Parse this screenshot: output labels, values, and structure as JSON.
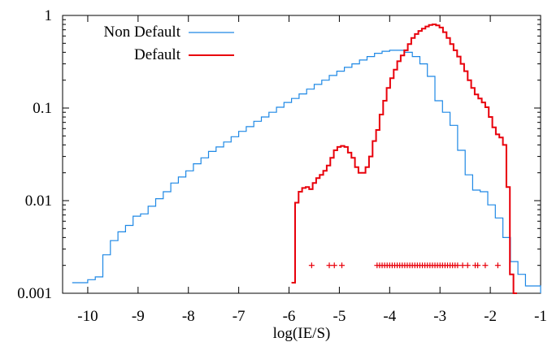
{
  "chart_data": {
    "type": "line",
    "title": "",
    "xlabel": "log(IE/S)",
    "ylabel": "",
    "xlim": [
      -10.5,
      -1
    ],
    "ylim": [
      0.001,
      1
    ],
    "yscale": "log",
    "grid": false,
    "legend_position": "top-left",
    "x_ticks": [
      -10,
      -9,
      -8,
      -7,
      -6,
      -5,
      -4,
      -3,
      -2,
      -1
    ],
    "x_tick_labels": [
      "-10",
      "-9",
      "-8",
      "-7",
      "-6",
      "-5",
      "-4",
      "-3",
      "-2",
      "-1"
    ],
    "y_ticks": [
      0.001,
      0.01,
      0.1,
      1
    ],
    "y_tick_labels": [
      "0.001",
      "0.01",
      "0.1",
      "1"
    ],
    "series": [
      {
        "name": "Non Default",
        "color": "#1e88e5",
        "style": "step",
        "points": [
          [
            -10.31,
            0.0013
          ],
          [
            -10.15,
            0.0013
          ],
          [
            -10.0,
            0.0014
          ],
          [
            -9.85,
            0.0015
          ],
          [
            -9.7,
            0.0026
          ],
          [
            -9.55,
            0.0037
          ],
          [
            -9.4,
            0.0046
          ],
          [
            -9.25,
            0.0054
          ],
          [
            -9.1,
            0.0068
          ],
          [
            -8.95,
            0.0072
          ],
          [
            -8.8,
            0.0087
          ],
          [
            -8.65,
            0.0105
          ],
          [
            -8.5,
            0.0125
          ],
          [
            -8.35,
            0.0155
          ],
          [
            -8.2,
            0.018
          ],
          [
            -8.05,
            0.021
          ],
          [
            -7.9,
            0.025
          ],
          [
            -7.75,
            0.029
          ],
          [
            -7.6,
            0.034
          ],
          [
            -7.45,
            0.038
          ],
          [
            -7.3,
            0.043
          ],
          [
            -7.15,
            0.049
          ],
          [
            -7.0,
            0.056
          ],
          [
            -6.85,
            0.063
          ],
          [
            -6.7,
            0.072
          ],
          [
            -6.55,
            0.08
          ],
          [
            -6.4,
            0.09
          ],
          [
            -6.25,
            0.102
          ],
          [
            -6.1,
            0.115
          ],
          [
            -5.95,
            0.127
          ],
          [
            -5.8,
            0.142
          ],
          [
            -5.65,
            0.16
          ],
          [
            -5.5,
            0.18
          ],
          [
            -5.35,
            0.2
          ],
          [
            -5.2,
            0.225
          ],
          [
            -5.05,
            0.25
          ],
          [
            -4.9,
            0.275
          ],
          [
            -4.75,
            0.3
          ],
          [
            -4.6,
            0.33
          ],
          [
            -4.45,
            0.36
          ],
          [
            -4.3,
            0.39
          ],
          [
            -4.15,
            0.41
          ],
          [
            -4.0,
            0.42
          ],
          [
            -3.85,
            0.42
          ],
          [
            -3.7,
            0.4
          ],
          [
            -3.55,
            0.36
          ],
          [
            -3.4,
            0.3
          ],
          [
            -3.25,
            0.22
          ],
          [
            -3.1,
            0.12
          ],
          [
            -2.95,
            0.09
          ],
          [
            -2.8,
            0.065
          ],
          [
            -2.65,
            0.035
          ],
          [
            -2.5,
            0.019
          ],
          [
            -2.35,
            0.013
          ],
          [
            -2.2,
            0.0125
          ],
          [
            -2.05,
            0.009
          ],
          [
            -1.9,
            0.0065
          ],
          [
            -1.75,
            0.004
          ],
          [
            -1.6,
            0.0022
          ],
          [
            -1.45,
            0.0016
          ],
          [
            -1.3,
            0.0012
          ],
          [
            -1.15,
            0.0012
          ]
        ]
      },
      {
        "name": "Default",
        "color": "#e8000b",
        "style": "step",
        "points": [
          [
            -5.95,
            0.0013
          ],
          [
            -5.88,
            0.0095
          ],
          [
            -5.81,
            0.0125
          ],
          [
            -5.74,
            0.0137
          ],
          [
            -5.67,
            0.014
          ],
          [
            -5.6,
            0.0133
          ],
          [
            -5.53,
            0.0155
          ],
          [
            -5.46,
            0.0175
          ],
          [
            -5.39,
            0.019
          ],
          [
            -5.32,
            0.021
          ],
          [
            -5.25,
            0.024
          ],
          [
            -5.18,
            0.029
          ],
          [
            -5.11,
            0.035
          ],
          [
            -5.04,
            0.038
          ],
          [
            -4.97,
            0.039
          ],
          [
            -4.9,
            0.038
          ],
          [
            -4.83,
            0.033
          ],
          [
            -4.76,
            0.029
          ],
          [
            -4.69,
            0.023
          ],
          [
            -4.62,
            0.02
          ],
          [
            -4.55,
            0.02
          ],
          [
            -4.48,
            0.023
          ],
          [
            -4.41,
            0.03
          ],
          [
            -4.34,
            0.044
          ],
          [
            -4.27,
            0.058
          ],
          [
            -4.2,
            0.085
          ],
          [
            -4.13,
            0.12
          ],
          [
            -4.06,
            0.165
          ],
          [
            -3.99,
            0.21
          ],
          [
            -3.92,
            0.26
          ],
          [
            -3.85,
            0.32
          ],
          [
            -3.78,
            0.37
          ],
          [
            -3.71,
            0.42
          ],
          [
            -3.64,
            0.49
          ],
          [
            -3.57,
            0.57
          ],
          [
            -3.5,
            0.63
          ],
          [
            -3.43,
            0.68
          ],
          [
            -3.36,
            0.72
          ],
          [
            -3.29,
            0.76
          ],
          [
            -3.22,
            0.79
          ],
          [
            -3.15,
            0.8
          ],
          [
            -3.08,
            0.78
          ],
          [
            -3.01,
            0.74
          ],
          [
            -2.94,
            0.66
          ],
          [
            -2.87,
            0.57
          ],
          [
            -2.8,
            0.49
          ],
          [
            -2.73,
            0.42
          ],
          [
            -2.66,
            0.36
          ],
          [
            -2.59,
            0.3
          ],
          [
            -2.52,
            0.25
          ],
          [
            -2.45,
            0.2
          ],
          [
            -2.38,
            0.165
          ],
          [
            -2.31,
            0.14
          ],
          [
            -2.24,
            0.127
          ],
          [
            -2.17,
            0.115
          ],
          [
            -2.1,
            0.102
          ],
          [
            -2.03,
            0.08
          ],
          [
            -1.96,
            0.062
          ],
          [
            -1.89,
            0.052
          ],
          [
            -1.82,
            0.048
          ],
          [
            -1.75,
            0.04
          ],
          [
            -1.68,
            0.014
          ],
          [
            -1.61,
            0.0016
          ],
          [
            -1.54,
            0.001
          ]
        ]
      },
      {
        "name": "",
        "color": "#e8000b",
        "style": "markers",
        "marker": "+",
        "y": 0.002,
        "x": [
          -5.55,
          -5.2,
          -5.1,
          -4.95,
          -4.25,
          -4.2,
          -4.15,
          -4.1,
          -4.05,
          -4.0,
          -3.95,
          -3.9,
          -3.85,
          -3.8,
          -3.75,
          -3.7,
          -3.65,
          -3.6,
          -3.55,
          -3.5,
          -3.45,
          -3.4,
          -3.35,
          -3.3,
          -3.25,
          -3.2,
          -3.15,
          -3.1,
          -3.05,
          -3.0,
          -2.95,
          -2.9,
          -2.85,
          -2.8,
          -2.75,
          -2.7,
          -2.65,
          -2.55,
          -2.45,
          -2.3,
          -2.25,
          -2.1,
          -1.85
        ]
      }
    ]
  }
}
